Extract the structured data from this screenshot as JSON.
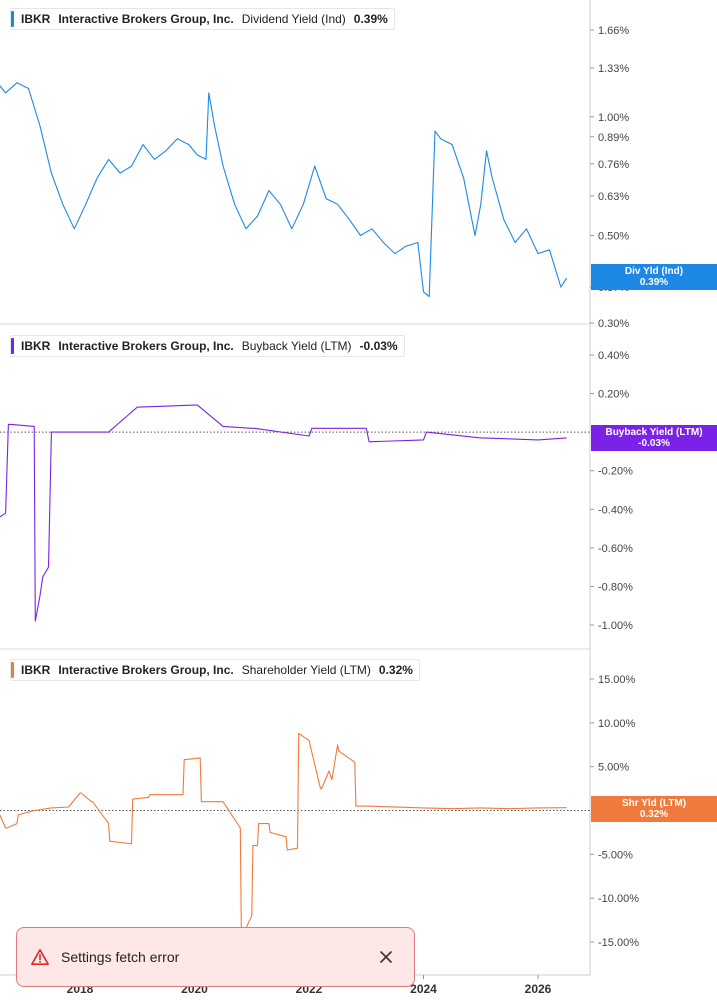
{
  "x_axis_ticks": [
    "2018",
    "2020",
    "2022",
    "2024",
    "2026"
  ],
  "chart_data": [
    {
      "type": "line",
      "panel": "dividend",
      "legend": {
        "ticker": "IBKR",
        "company": "Interactive Brokers Group, Inc.",
        "metric": "Dividend Yield (Ind)",
        "value": "0.39%"
      },
      "badge": {
        "label": "Div Yld (Ind)",
        "value": "0.39%"
      },
      "color": "#1e88e5",
      "y_scale": "log",
      "y_ticks": [
        {
          "v": 1.66,
          "label": "1.66%"
        },
        {
          "v": 1.33,
          "label": "1.33%"
        },
        {
          "v": 1.0,
          "label": "1.00%"
        },
        {
          "v": 0.89,
          "label": "0.89%"
        },
        {
          "v": 0.76,
          "label": "0.76%"
        },
        {
          "v": 0.63,
          "label": "0.63%"
        },
        {
          "v": 0.5,
          "label": "0.50%"
        },
        {
          "v": 0.37,
          "label": "0.37%"
        },
        {
          "v": 0.3,
          "label": "0.30%"
        }
      ],
      "series": [
        {
          "x": [
            2016.3,
            2016.5,
            2016.7,
            2016.9,
            2017.1,
            2017.3,
            2017.5,
            2017.7,
            2017.9,
            2018.1,
            2018.3,
            2018.5,
            2018.7,
            2018.9,
            2019.1,
            2019.3,
            2019.5,
            2019.7,
            2019.9,
            2020.05,
            2020.2,
            2020.25,
            2020.35,
            2020.5,
            2020.7,
            2020.9,
            2021.1,
            2021.3,
            2021.5,
            2021.7,
            2021.9,
            2022.1,
            2022.3,
            2022.5,
            2022.7,
            2022.9,
            2023.1,
            2023.3,
            2023.5,
            2023.7,
            2023.9,
            2024.0,
            2024.1,
            2024.2,
            2024.25,
            2024.3,
            2024.5,
            2024.7,
            2024.9,
            2025.0,
            2025.1,
            2025.2,
            2025.4,
            2025.6,
            2025.8,
            2026.0,
            2026.2,
            2026.4,
            2026.5
          ],
          "y": [
            1.2,
            1.25,
            1.15,
            1.22,
            1.18,
            0.95,
            0.72,
            0.6,
            0.52,
            0.6,
            0.7,
            0.78,
            0.72,
            0.75,
            0.85,
            0.78,
            0.82,
            0.88,
            0.85,
            0.8,
            0.78,
            1.15,
            0.95,
            0.75,
            0.6,
            0.52,
            0.56,
            0.65,
            0.6,
            0.52,
            0.6,
            0.75,
            0.62,
            0.6,
            0.55,
            0.5,
            0.52,
            0.48,
            0.45,
            0.47,
            0.48,
            0.36,
            0.35,
            0.92,
            0.9,
            0.88,
            0.85,
            0.7,
            0.5,
            0.6,
            0.82,
            0.7,
            0.55,
            0.48,
            0.52,
            0.45,
            0.46,
            0.37,
            0.39
          ]
        }
      ]
    },
    {
      "type": "line",
      "panel": "buyback",
      "legend": {
        "ticker": "IBKR",
        "company": "Interactive Brokers Group, Inc.",
        "metric": "Buyback Yield (LTM)",
        "value": "-0.03%"
      },
      "badge": {
        "label": "Buyback Yield (LTM)",
        "value": "-0.03%"
      },
      "color": "#7b22e8",
      "y_ticks": [
        {
          "v": 0.4,
          "label": "0.40%"
        },
        {
          "v": 0.2,
          "label": "0.20%"
        },
        {
          "v": -0.2,
          "label": "-0.20%"
        },
        {
          "v": -0.4,
          "label": "-0.40%"
        },
        {
          "v": -0.6,
          "label": "-0.60%"
        },
        {
          "v": -0.8,
          "label": "-0.80%"
        },
        {
          "v": -1.0,
          "label": "-1.00%"
        }
      ],
      "series": [
        {
          "x": [
            2016.3,
            2016.45,
            2016.5,
            2016.55,
            2016.7,
            2016.75,
            2016.8,
            2017.2,
            2017.22,
            2017.3,
            2017.35,
            2017.45,
            2017.5,
            2017.52,
            2018.0,
            2018.05,
            2018.1,
            2018.3,
            2018.5,
            2019.0,
            2019.05,
            2020.0,
            2020.05,
            2020.5,
            2021.0,
            2021.05,
            2022.0,
            2022.05,
            2022.5,
            2023.0,
            2023.05,
            2024.0,
            2024.05,
            2025.0,
            2025.05,
            2026.0,
            2026.5
          ],
          "y": [
            -0.12,
            -0.12,
            -0.5,
            -0.45,
            -0.42,
            0.04,
            0.04,
            0.03,
            -0.98,
            -0.85,
            -0.75,
            -0.7,
            0.0,
            0.0,
            0.0,
            0.0,
            0.0,
            0.0,
            0.0,
            0.13,
            0.13,
            0.14,
            0.14,
            0.03,
            0.02,
            0.02,
            -0.02,
            0.02,
            0.02,
            0.02,
            -0.05,
            -0.04,
            0.0,
            -0.03,
            -0.03,
            -0.04,
            -0.03
          ]
        }
      ]
    },
    {
      "type": "line",
      "panel": "shareholder",
      "legend": {
        "ticker": "IBKR",
        "company": "Interactive Brokers Group, Inc.",
        "metric": "Shareholder Yield (LTM)",
        "value": "0.32%"
      },
      "badge": {
        "label": "Shr Yld (LTM)",
        "value": "0.32%"
      },
      "color": "#f07a3c",
      "y_ticks": [
        {
          "v": 15,
          "label": "15.00%"
        },
        {
          "v": 10,
          "label": "10.00%"
        },
        {
          "v": 5,
          "label": "5.00%"
        },
        {
          "v": -5,
          "label": "-5.00%"
        },
        {
          "v": -10,
          "label": "-10.00%"
        },
        {
          "v": -15,
          "label": "-15.00%"
        }
      ],
      "series": [
        {
          "x": [
            2016.3,
            2016.5,
            2016.7,
            2016.72,
            2016.9,
            2016.92,
            2017.2,
            2017.5,
            2017.8,
            2018.0,
            2018.02,
            2018.2,
            2018.22,
            2018.5,
            2018.52,
            2018.9,
            2018.92,
            2019.2,
            2019.22,
            2019.8,
            2019.82,
            2020.1,
            2020.12,
            2020.5,
            2020.8,
            2020.82,
            2021.0,
            2021.02,
            2021.1,
            2021.12,
            2021.3,
            2021.32,
            2021.6,
            2021.62,
            2021.8,
            2021.82,
            2022.0,
            2022.2,
            2022.22,
            2022.35,
            2022.4,
            2022.5,
            2022.52,
            2022.8,
            2022.82,
            2023.0,
            2023.02,
            2024.0,
            2024.5,
            2025.0,
            2025.5,
            2026.0,
            2026.5
          ],
          "y": [
            1.0,
            1.0,
            -2.0,
            -2.0,
            -1.5,
            -0.5,
            0.0,
            0.3,
            0.4,
            2.0,
            2.0,
            1.0,
            1.0,
            -1.5,
            -3.5,
            -3.8,
            1.3,
            1.5,
            1.8,
            1.8,
            5.8,
            6.0,
            1.0,
            1.0,
            -2.0,
            -14.5,
            -12.0,
            -4.0,
            -4.0,
            -1.5,
            -1.5,
            -2.5,
            -3.0,
            -4.5,
            -4.3,
            8.8,
            8.0,
            2.5,
            2.5,
            4.5,
            3.5,
            7.5,
            6.8,
            5.5,
            0.5,
            0.5,
            0.5,
            0.3,
            0.2,
            0.3,
            0.2,
            0.3,
            0.32
          ]
        }
      ]
    }
  ],
  "toast": {
    "message": "Settings fetch error",
    "icon": "warning-icon"
  }
}
